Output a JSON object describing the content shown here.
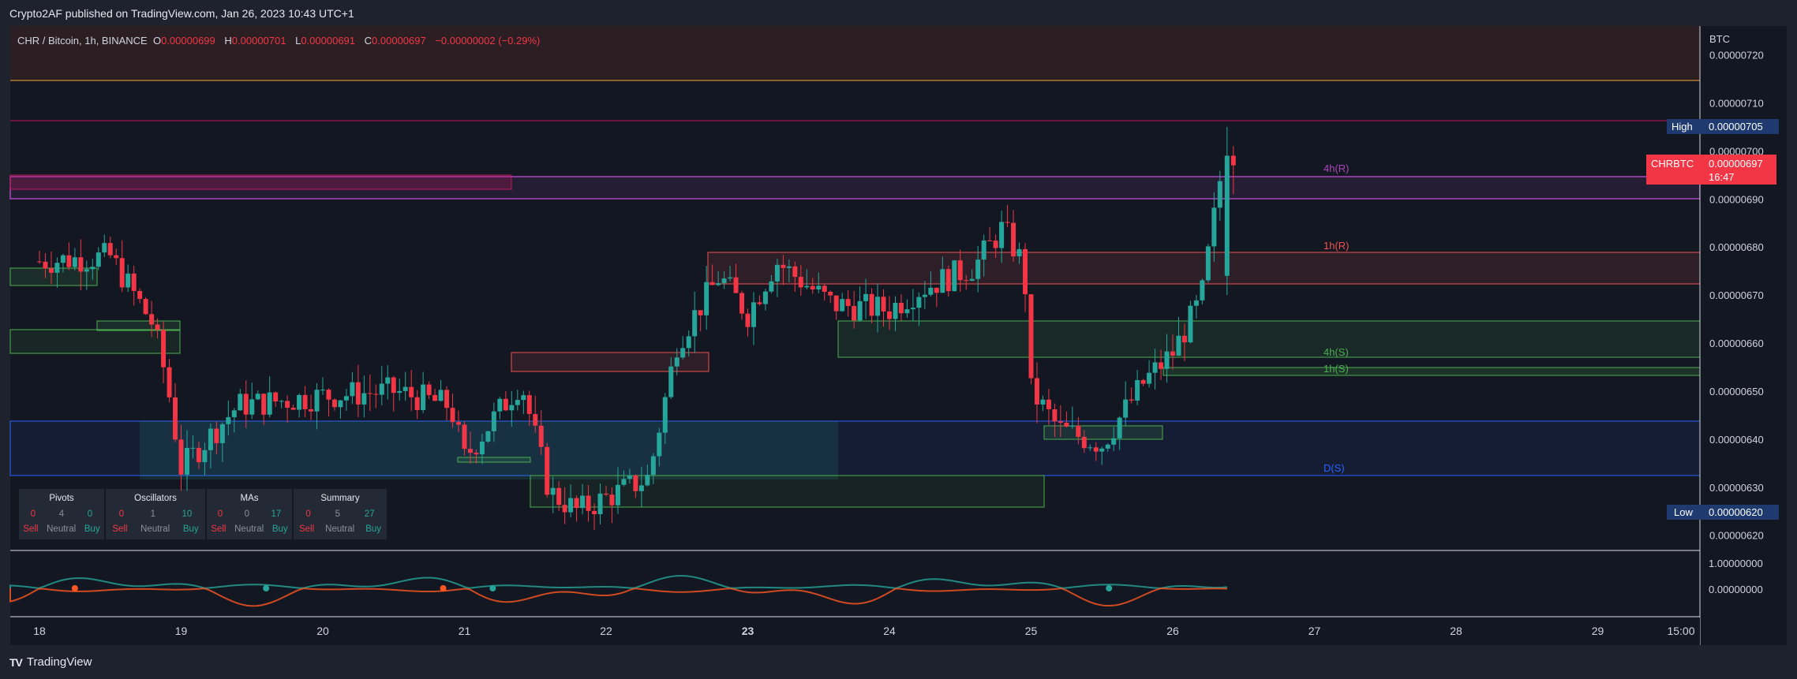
{
  "publish_line": "Crypto2AF published on TradingView.com, Jan 26, 2023 10:43 UTC+1",
  "legend": {
    "symbol": "CHR / Bitcoin, 1h, BINANCE",
    "o_label": "O",
    "o": "0.00000699",
    "h_label": "H",
    "h": "0.00000701",
    "l_label": "L",
    "l": "0.00000691",
    "c_label": "C",
    "c": "0.00000697",
    "change": "−0.00000002 (−0.29%)"
  },
  "price_axis": {
    "unit": "BTC",
    "ticks": [
      "0.00000720",
      "0.00000710",
      "0.00000700",
      "0.00000690",
      "0.00000680",
      "0.00000670",
      "0.00000660",
      "0.00000650",
      "0.00000640",
      "0.00000630",
      "0.00000620"
    ],
    "high_label": "High",
    "high_value": "0.00000705",
    "low_label": "Low",
    "low_value": "0.00000620",
    "last_symbol": "CHRBTC",
    "last_value": "0.00000697",
    "countdown": "16:47"
  },
  "osc_axis": {
    "ticks": [
      "1.00000000",
      "0.00000000"
    ]
  },
  "time_axis": {
    "ticks": [
      "18",
      "19",
      "20",
      "21",
      "22",
      "23",
      "24",
      "25",
      "26",
      "27",
      "28",
      "29",
      "15:00"
    ]
  },
  "zone_labels": {
    "r4h": "4h(R)",
    "r1h": "1h(R)",
    "s4h": "4h(S)",
    "s1h": "1h(S)",
    "d": "D(S)"
  },
  "ta_summary": [
    {
      "title": "Pivots",
      "sell": "0",
      "neutral": "4",
      "buy": "0"
    },
    {
      "title": "Oscillators",
      "sell": "0",
      "neutral": "1",
      "buy": "10"
    },
    {
      "title": "MAs",
      "sell": "0",
      "neutral": "0",
      "buy": "17"
    },
    {
      "title": "Summary",
      "sell": "0",
      "neutral": "5",
      "buy": "27"
    }
  ],
  "ta_labels": {
    "sell": "Sell",
    "neutral": "Neutral",
    "buy": "Buy"
  },
  "brand": "TradingView",
  "colors": {
    "bg": "#131722",
    "up": "#26a69a",
    "down": "#f23645",
    "support": "#4caf50",
    "resistance_4h": "#ab47bc",
    "resistance_1h": "#ef5350",
    "daily": "#2962ff"
  },
  "chart_data": {
    "type": "candlestick",
    "title": "CHR / Bitcoin, 1h, BINANCE",
    "ylabel": "BTC",
    "ylim": [
      6.17e-06,
      7.26e-06
    ],
    "x_ticks": [
      "18",
      "19",
      "20",
      "21",
      "22",
      "23",
      "24",
      "25",
      "26",
      "27",
      "28",
      "29",
      "15:00"
    ],
    "last": {
      "open": 6.99e-06,
      "high": 7.01e-06,
      "low": 6.91e-06,
      "close": 6.97e-06
    },
    "high": 7.05e-06,
    "low": 6.2e-06,
    "key_closes": [
      {
        "x": 0.0,
        "y": 6.77e-06
      },
      {
        "x": 0.5,
        "y": 6.78e-06
      },
      {
        "x": 0.8,
        "y": 6.64e-06
      },
      {
        "x": 0.9,
        "y": 6.52e-06
      },
      {
        "x": 1.0,
        "y": 6.34e-06
      },
      {
        "x": 1.4,
        "y": 6.47e-06
      },
      {
        "x": 2.0,
        "y": 6.49e-06
      },
      {
        "x": 2.5,
        "y": 6.5e-06
      },
      {
        "x": 2.9,
        "y": 6.47e-06
      },
      {
        "x": 3.0,
        "y": 6.36e-06
      },
      {
        "x": 3.4,
        "y": 6.52e-06
      },
      {
        "x": 3.6,
        "y": 6.29e-06
      },
      {
        "x": 3.8,
        "y": 6.25e-06
      },
      {
        "x": 4.3,
        "y": 6.32e-06
      },
      {
        "x": 4.5,
        "y": 6.6e-06
      },
      {
        "x": 4.8,
        "y": 6.74e-06
      },
      {
        "x": 5.0,
        "y": 6.66e-06
      },
      {
        "x": 5.2,
        "y": 6.77e-06
      },
      {
        "x": 5.6,
        "y": 6.68e-06
      },
      {
        "x": 6.0,
        "y": 6.67e-06
      },
      {
        "x": 6.2,
        "y": 6.71e-06
      },
      {
        "x": 6.6,
        "y": 6.76e-06
      },
      {
        "x": 6.8,
        "y": 6.84e-06
      },
      {
        "x": 6.95,
        "y": 6.76e-06
      },
      {
        "x": 7.0,
        "y": 6.5e-06
      },
      {
        "x": 7.2,
        "y": 6.42e-06
      },
      {
        "x": 7.5,
        "y": 6.39e-06
      },
      {
        "x": 7.8,
        "y": 6.52e-06
      },
      {
        "x": 8.0,
        "y": 6.58e-06
      },
      {
        "x": 8.2,
        "y": 6.69e-06
      },
      {
        "x": 8.35,
        "y": 6.97e-06
      }
    ],
    "zones": [
      {
        "label": "4h(R)",
        "low": 6.89e-06,
        "high": 6.94e-06
      },
      {
        "label": "1h(R)",
        "low": 6.7e-06,
        "high": 6.77e-06
      },
      {
        "label": "4h(S)",
        "low": 6.54e-06,
        "high": 6.62e-06
      },
      {
        "label": "1h(S)",
        "low": 6.5e-06,
        "high": 6.52e-06
      },
      {
        "label": "D(S)",
        "low": 6.28e-06,
        "high": 6.4e-06
      }
    ],
    "oscillator_ticks": [
      1.0,
      0.0
    ]
  }
}
